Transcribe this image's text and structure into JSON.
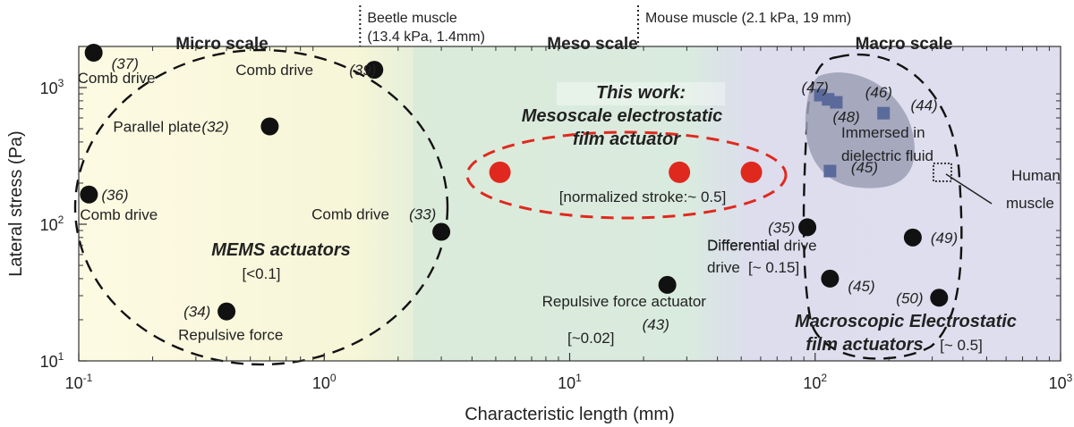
{
  "chart_data": {
    "type": "scatter",
    "xlabel": "Characteristic length (mm)",
    "ylabel": "Lateral stress (Pa)",
    "xscale": "log",
    "yscale": "log",
    "xlim": [
      0.1,
      1000
    ],
    "ylim": [
      10,
      2000
    ],
    "x_ticks": [
      {
        "value": 0.1,
        "base": "10",
        "exp": "-1"
      },
      {
        "value": 1,
        "base": "10",
        "exp": "0"
      },
      {
        "value": 10,
        "base": "10",
        "exp": "1"
      },
      {
        "value": 100,
        "base": "10",
        "exp": "2"
      },
      {
        "value": 1000,
        "base": "10",
        "exp": "3"
      }
    ],
    "y_ticks": [
      {
        "value": 10,
        "base": "10",
        "exp": "1"
      },
      {
        "value": 100,
        "base": "10",
        "exp": "2"
      },
      {
        "value": 1000,
        "base": "10",
        "exp": "3"
      }
    ],
    "regions": [
      {
        "name": "Micro scale",
        "x_start": 0.1,
        "x_end": 2.3,
        "color": "#fbf8dc"
      },
      {
        "name": "Meso scale",
        "x_start": 2.3,
        "x_end": 50,
        "color": "#d9ecdf"
      },
      {
        "name": "Macro scale",
        "x_start": 50,
        "x_end": 1000,
        "color": "#dfe0ef"
      }
    ],
    "reference_lines": [
      {
        "x": 1.4,
        "line1": "Beetle muscle",
        "line2": "(13.4 kPa, 1.4mm)"
      },
      {
        "x": 19,
        "line1": "Mouse muscle (2.1 kPa, 19 mm)",
        "line2": ""
      }
    ],
    "points": [
      {
        "x": 0.115,
        "y": 1800,
        "ref": "(37)",
        "label": "Comb drive"
      },
      {
        "x": 1.6,
        "y": 1350,
        "ref": "(39)",
        "label": "Comb drive"
      },
      {
        "x": 0.6,
        "y": 520,
        "ref": "(32)",
        "label": "Parallel plate"
      },
      {
        "x": 0.11,
        "y": 165,
        "ref": "(36)",
        "label": "Comb drive"
      },
      {
        "x": 3.0,
        "y": 88,
        "ref": "(33)",
        "label": "Comb drive"
      },
      {
        "x": 0.4,
        "y": 23,
        "ref": "(34)",
        "label": "Repulsive force"
      },
      {
        "x": 25,
        "y": 36,
        "ref": "(43)",
        "label": "Repulsive force actuator"
      },
      {
        "x": 93,
        "y": 95,
        "ref": "(35)",
        "label": "Differential drive"
      },
      {
        "x": 115,
        "y": 40,
        "ref": "(45)",
        "label": ""
      },
      {
        "x": 250,
        "y": 80,
        "ref": "(49)",
        "label": ""
      },
      {
        "x": 320,
        "y": 29,
        "ref": "(50)",
        "label": ""
      }
    ],
    "this_work": [
      {
        "x": 5.2,
        "y": 240
      },
      {
        "x": 28,
        "y": 240
      },
      {
        "x": 55,
        "y": 240
      }
    ],
    "immersed_points": [
      {
        "x": 105,
        "y": 880
      },
      {
        "x": 113,
        "y": 820
      },
      {
        "x": 122,
        "y": 780
      },
      {
        "x": 190,
        "y": 650
      },
      {
        "x": 115,
        "y": 245
      }
    ],
    "immersed_refs": [
      {
        "text": "(47)",
        "x": 88,
        "y": 920
      },
      {
        "text": "(46)",
        "x": 160,
        "y": 850
      },
      {
        "text": "(48)",
        "x": 118,
        "y": 560
      },
      {
        "text": "(44)",
        "x": 245,
        "y": 680
      },
      {
        "text": "(45)",
        "x": 140,
        "y": 240
      }
    ],
    "human_muscle": {
      "x": 330,
      "y": 240,
      "label_line1": "Human",
      "label_line2": "muscle"
    },
    "annotations": {
      "immersed_line1": "Immersed in",
      "immersed_line2": "dielectric fluid",
      "this_work_line1": "This work:",
      "this_work_line2": "Mesoscale electrostatic",
      "this_work_line3": "film actuator",
      "normalized_stroke": "[normalized stroke:~ 0.5]",
      "mems_title": "MEMS actuators",
      "mems_stroke": "[<0.1]",
      "repulsive_stroke": "[~0.02]",
      "differential_line1": "Differential",
      "differential_line2": "drive",
      "differential_stroke": "[~ 0.15]",
      "macro_line1": "Macroscopic Electrostatic",
      "macro_line2": "film actuators",
      "macro_stroke": "[~ 0.5]"
    },
    "colors": {
      "point": "#111111",
      "this_work": "#e0291e",
      "immersed": "#5a6a9a",
      "immersed_blob": "#9c9fb5"
    }
  }
}
